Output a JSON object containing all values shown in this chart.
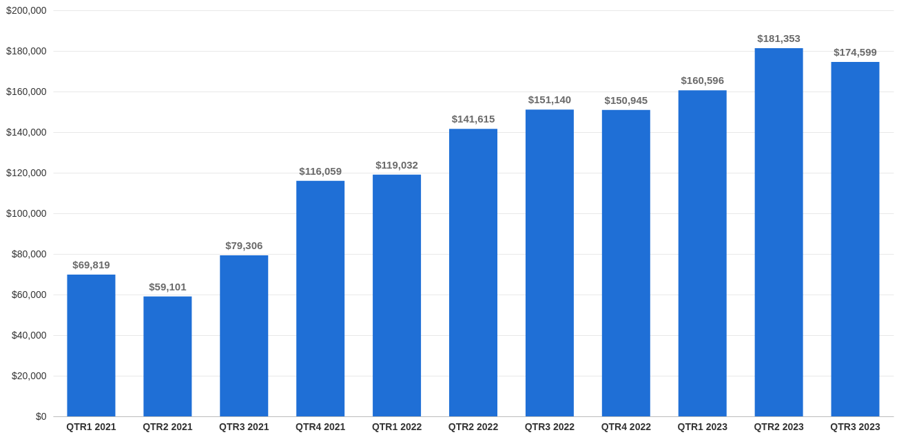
{
  "chart_data": {
    "type": "bar",
    "categories": [
      "QTR1 2021",
      "QTR2 2021",
      "QTR3 2021",
      "QTR4 2021",
      "QTR1 2022",
      "QTR2 2022",
      "QTR3 2022",
      "QTR4 2022",
      "QTR1 2023",
      "QTR2 2023",
      "QTR3 2023"
    ],
    "values": [
      69819,
      59101,
      79306,
      116059,
      119032,
      141615,
      151140,
      150945,
      160596,
      181353,
      174599
    ],
    "value_labels": [
      "$69,819",
      "$59,101",
      "$79,306",
      "$116,059",
      "$119,032",
      "$141,615",
      "$151,140",
      "$150,945",
      "$160,596",
      "$181,353",
      "$174,599"
    ],
    "color": "#1f6fd6",
    "ylim": [
      0,
      200000
    ],
    "yticks": [
      {
        "value": 0,
        "label": "$0"
      },
      {
        "value": 20000,
        "label": "$20,000"
      },
      {
        "value": 40000,
        "label": "$40,000"
      },
      {
        "value": 60000,
        "label": "$60,000"
      },
      {
        "value": 80000,
        "label": "$80,000"
      },
      {
        "value": 100000,
        "label": "$100,000"
      },
      {
        "value": 120000,
        "label": "$120,000"
      },
      {
        "value": 140000,
        "label": "$140,000"
      },
      {
        "value": 160000,
        "label": "$160,000"
      },
      {
        "value": 180000,
        "label": "$180,000"
      },
      {
        "value": 200000,
        "label": "$200,000"
      }
    ],
    "grid": "y"
  }
}
